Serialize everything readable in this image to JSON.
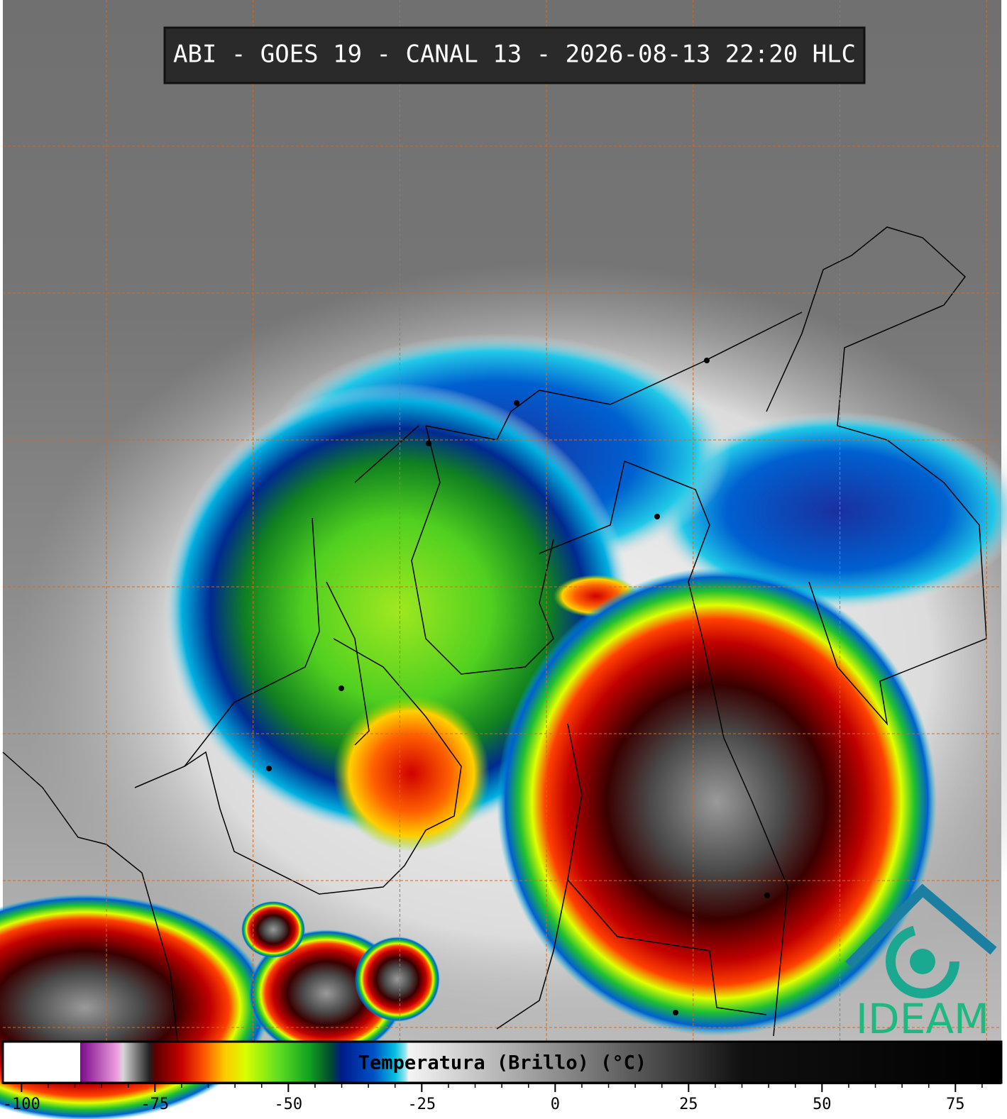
{
  "header": {
    "title": "ABI - GOES 19 - CANAL 13 - 2026-08-13 22:20 HLC"
  },
  "colorbar": {
    "label": "Temperatura (Brillo) (°C)",
    "range": [
      -103.5,
      83.6
    ],
    "ticks": [
      -100,
      -75,
      -50,
      -25,
      0,
      25,
      50,
      75
    ],
    "stops": [
      {
        "value": -103.5,
        "color": "#ffffff"
      },
      {
        "value": -89,
        "color": "#ffffff"
      },
      {
        "value": -89,
        "color": "#7a0a8a"
      },
      {
        "value": -82,
        "color": "#f0a0e0"
      },
      {
        "value": -81,
        "color": "#d8d8d8"
      },
      {
        "value": -76,
        "color": "#202020"
      },
      {
        "value": -75,
        "color": "#5a0000"
      },
      {
        "value": -70,
        "color": "#c80000"
      },
      {
        "value": -66,
        "color": "#ff5000"
      },
      {
        "value": -62,
        "color": "#ffc800"
      },
      {
        "value": -58,
        "color": "#d8ff00"
      },
      {
        "value": -52,
        "color": "#60e020"
      },
      {
        "value": -46,
        "color": "#10a020"
      },
      {
        "value": -42,
        "color": "#004a30"
      },
      {
        "value": -40,
        "color": "#001a8a"
      },
      {
        "value": -34,
        "color": "#0050c8"
      },
      {
        "value": -30,
        "color": "#00c0e0"
      },
      {
        "value": -28,
        "color": "#9ee8f0"
      },
      {
        "value": -27.5,
        "color": "#f4f4f4"
      },
      {
        "value": 35,
        "color": "#101010"
      },
      {
        "value": 83.6,
        "color": "#000000"
      }
    ]
  },
  "logo": {
    "text": "IDEAM"
  }
}
